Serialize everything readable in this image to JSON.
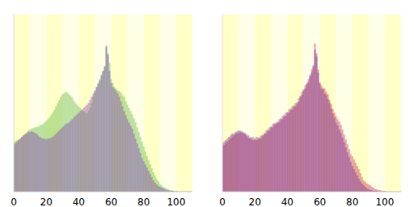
{
  "chart_data": [
    {
      "type": "bar",
      "x": [
        0,
        1,
        2,
        3,
        4,
        5,
        6,
        7,
        8,
        9,
        10,
        11,
        12,
        13,
        14,
        15,
        16,
        17,
        18,
        19,
        20,
        21,
        22,
        23,
        24,
        25,
        26,
        27,
        28,
        29,
        30,
        31,
        32,
        33,
        34,
        35,
        36,
        37,
        38,
        39,
        40,
        41,
        42,
        43,
        44,
        45,
        46,
        47,
        48,
        49,
        50,
        51,
        52,
        53,
        54,
        55,
        56,
        57,
        58,
        59,
        60,
        61,
        62,
        63,
        64,
        65,
        66,
        67,
        68,
        69,
        70,
        71,
        72,
        73,
        74,
        75,
        76,
        77,
        78,
        79,
        80,
        81,
        82,
        83,
        84,
        85,
        86,
        87,
        88,
        89,
        90,
        91,
        92,
        93,
        94,
        95,
        96,
        97,
        98,
        99,
        100
      ],
      "series": [
        {
          "color": "#66bb44",
          "values": [
            62,
            63,
            64,
            65,
            66,
            68,
            70,
            72,
            74,
            76,
            77,
            78,
            79,
            80,
            80,
            81,
            82,
            83,
            84,
            86,
            88,
            90,
            92,
            95,
            98,
            102,
            106,
            110,
            114,
            118,
            121,
            122,
            124,
            123,
            121,
            119,
            117,
            113,
            110,
            108,
            106,
            104,
            101,
            100,
            98,
            97,
            100,
            104,
            110,
            118,
            124,
            130,
            135,
            140,
            146,
            150,
            155,
            182,
            172,
            160,
            140,
            135,
            130,
            128,
            126,
            125,
            123,
            120,
            118,
            112,
            108,
            104,
            100,
            96,
            91,
            86,
            80,
            74,
            68,
            62,
            56,
            50,
            44,
            39,
            34,
            29,
            24,
            20,
            16,
            13,
            10,
            8,
            6,
            5,
            4,
            3,
            2,
            2,
            1,
            1,
            1
          ]
        },
        {
          "color": "#8844bb",
          "values": [
            58,
            60,
            62,
            64,
            66,
            68,
            70,
            71,
            72,
            74,
            74,
            75,
            74,
            73,
            72,
            70,
            68,
            67,
            66,
            66,
            65,
            66,
            66,
            67,
            68,
            70,
            72,
            74,
            76,
            78,
            80,
            82,
            84,
            85,
            86,
            88,
            90,
            92,
            94,
            96,
            98,
            100,
            102,
            104,
            106,
            108,
            110,
            114,
            118,
            122,
            126,
            130,
            134,
            138,
            144,
            150,
            156,
            180,
            170,
            150,
            135,
            130,
            128,
            125,
            122,
            118,
            112,
            106,
            100,
            95,
            90,
            86,
            82,
            78,
            72,
            66,
            60,
            54,
            48,
            42,
            38,
            34,
            30,
            26,
            22,
            18,
            14,
            11,
            9,
            7,
            6,
            5,
            4,
            3,
            2,
            2,
            1,
            1,
            1,
            0,
            0
          ]
        }
      ],
      "xlim": [
        0,
        110
      ],
      "xticks": [
        0,
        20,
        40,
        60,
        80,
        100
      ],
      "ylim": [
        0,
        220
      ],
      "tick_labels": "x"
    },
    {
      "type": "bar",
      "x": [
        0,
        1,
        2,
        3,
        4,
        5,
        6,
        7,
        8,
        9,
        10,
        11,
        12,
        13,
        14,
        15,
        16,
        17,
        18,
        19,
        20,
        21,
        22,
        23,
        24,
        25,
        26,
        27,
        28,
        29,
        30,
        31,
        32,
        33,
        34,
        35,
        36,
        37,
        38,
        39,
        40,
        41,
        42,
        43,
        44,
        45,
        46,
        47,
        48,
        49,
        50,
        51,
        52,
        53,
        54,
        55,
        56,
        57,
        58,
        59,
        60,
        61,
        62,
        63,
        64,
        65,
        66,
        67,
        68,
        69,
        70,
        71,
        72,
        73,
        74,
        75,
        76,
        77,
        78,
        79,
        80,
        81,
        82,
        83,
        84,
        85,
        86,
        87,
        88,
        89,
        90,
        91,
        92,
        93,
        94,
        95,
        96,
        97,
        98,
        99,
        100
      ],
      "series": [
        {
          "color": "#3333cc",
          "values": [
            60,
            58,
            64,
            62,
            68,
            66,
            72,
            70,
            74,
            73,
            76,
            74,
            75,
            72,
            73,
            69,
            70,
            66,
            67,
            64,
            66,
            64,
            67,
            66,
            70,
            69,
            73,
            72,
            77,
            76,
            81,
            80,
            85,
            84,
            87,
            86,
            91,
            90,
            95,
            94,
            99,
            98,
            103,
            102,
            107,
            106,
            111,
            112,
            119,
            120,
            127,
            128,
            135,
            136,
            145,
            148,
            157,
            176,
            168,
            148,
            134,
            128,
            127,
            122,
            120,
            115,
            110,
            103,
            97,
            92,
            86,
            82,
            77,
            73,
            67,
            61,
            55,
            49,
            43,
            37,
            32,
            28,
            24,
            20,
            16,
            13,
            10,
            8,
            6,
            4,
            3,
            2,
            2,
            1,
            1,
            1,
            0,
            0,
            0,
            0,
            0
          ]
        },
        {
          "color": "#cc3355",
          "values": [
            56,
            62,
            60,
            66,
            64,
            70,
            68,
            72,
            71,
            75,
            72,
            76,
            73,
            74,
            71,
            71,
            66,
            68,
            65,
            68,
            64,
            68,
            65,
            68,
            66,
            71,
            71,
            76,
            75,
            80,
            79,
            84,
            83,
            86,
            85,
            90,
            89,
            94,
            93,
            98,
            97,
            102,
            101,
            106,
            105,
            110,
            109,
            116,
            117,
            124,
            125,
            132,
            133,
            140,
            143,
            152,
            155,
            184,
            172,
            152,
            136,
            132,
            129,
            128,
            124,
            121,
            114,
            109,
            103,
            98,
            94,
            90,
            87,
            83,
            77,
            71,
            65,
            59,
            53,
            47,
            44,
            40,
            36,
            32,
            28,
            23,
            18,
            14,
            12,
            10,
            9,
            8,
            6,
            5,
            3,
            3,
            2,
            2,
            1,
            1,
            1
          ]
        }
      ],
      "xlim": [
        0,
        110
      ],
      "xticks": [
        0,
        20,
        40,
        60,
        80,
        100
      ],
      "ylim": [
        0,
        220
      ],
      "tick_labels": "x"
    }
  ]
}
